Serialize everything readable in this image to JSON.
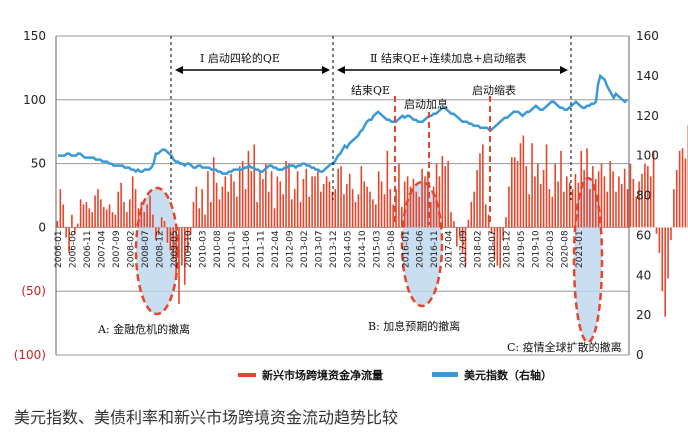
{
  "chart_data": {
    "type": "bar+line",
    "caption": "美元指数、美债利率和新兴市场跨境资金流动趋势比较",
    "left_axis": {
      "ticks": [
        "150",
        "100",
        "50",
        "0",
        "(50)",
        "(100)"
      ],
      "ylim": [
        -100,
        150
      ]
    },
    "right_axis": {
      "ticks": [
        "160",
        "140",
        "120",
        "100",
        "80",
        "60",
        "40",
        "20",
        "0"
      ],
      "ylim": [
        0,
        160
      ]
    },
    "x_ticks": [
      "2006-01",
      "2006-06",
      "2006-11",
      "2007-04",
      "2007-09",
      "2008-02",
      "2008-07",
      "2008-12",
      "2009-05",
      "2009-10",
      "2010-03",
      "2010-08",
      "2011-01",
      "2011-06",
      "2011-11",
      "2012-04",
      "2012-09",
      "2013-02",
      "2013-07",
      "2013-12",
      "2014-05",
      "2014-10",
      "2015-03",
      "2015-08",
      "2016-01",
      "2016-06",
      "2016-11",
      "2017-04",
      "2017-09",
      "2018-02",
      "2018-07",
      "2018-12",
      "2019-05",
      "2019-10",
      "2020-03",
      "2020-08",
      "2021-01"
    ],
    "start": "2006-01",
    "series": [
      {
        "name": "新兴市场跨境资金净流量",
        "axis": "left",
        "color": "#e8442a",
        "values": [
          5,
          30,
          18,
          -8,
          -20,
          10,
          -5,
          3,
          22,
          18,
          20,
          15,
          12,
          25,
          30,
          22,
          16,
          14,
          18,
          12,
          10,
          28,
          35,
          20,
          12,
          22,
          40,
          30,
          15,
          20,
          12,
          18,
          25,
          10,
          -10,
          -6,
          8,
          5,
          -12,
          -18,
          -25,
          -40,
          -60,
          -30,
          -45,
          -20,
          -6,
          20,
          32,
          15,
          30,
          10,
          44,
          20,
          55,
          35,
          22,
          32,
          40,
          28,
          42,
          36,
          24,
          48,
          52,
          30,
          60,
          44,
          65,
          20,
          45,
          38,
          50,
          28,
          44,
          15,
          40,
          36,
          26,
          52,
          50,
          22,
          30,
          44,
          20,
          38,
          46,
          24,
          40,
          40,
          44,
          28,
          34,
          40,
          36,
          28,
          30,
          46,
          48,
          26,
          34,
          42,
          30,
          20,
          26,
          48,
          36,
          32,
          28,
          22,
          18,
          44,
          36,
          26,
          60,
          30,
          18,
          30,
          50,
          16,
          36,
          40,
          32,
          38,
          28,
          24,
          46,
          40,
          44,
          20,
          32,
          50,
          40,
          56,
          48,
          52,
          12,
          5,
          -15,
          -8,
          -20,
          -30,
          6,
          20,
          28,
          45,
          58,
          65,
          18,
          10,
          -5,
          -25,
          -30,
          -32,
          -10,
          8,
          32,
          55,
          55,
          52,
          66,
          72,
          48,
          26,
          66,
          40,
          50,
          34,
          45,
          65,
          30,
          24,
          50,
          36,
          60,
          28,
          40,
          35,
          30,
          42,
          35,
          60,
          45,
          62,
          30,
          48,
          38,
          44,
          50,
          40,
          28,
          52,
          44,
          28,
          40,
          34,
          46,
          30,
          50,
          38,
          24,
          36,
          42,
          50,
          48,
          40,
          60,
          -5,
          -20,
          -50,
          -70,
          -40,
          -10,
          30,
          45,
          60,
          62,
          54,
          80,
          115,
          84,
          50,
          62,
          78,
          72,
          60,
          16,
          28
        ],
        "markers": [],
        "markers_note": ""
      },
      {
        "name": "美元指数（右轴）",
        "axis": "right",
        "color": "#3a9ad6",
        "values": [
          100,
          100,
          100,
          100,
          101,
          101,
          100,
          100,
          100,
          101,
          101,
          100,
          99,
          99,
          99,
          99,
          99,
          98,
          98,
          98,
          97,
          97,
          97,
          96,
          96,
          95,
          95,
          95,
          95,
          95,
          94,
          94,
          94,
          93,
          93,
          92,
          93,
          92,
          92,
          93,
          93,
          93,
          94,
          96,
          101,
          101,
          102,
          103,
          103,
          102,
          101,
          100,
          98,
          97,
          97,
          96,
          96,
          95,
          96,
          96,
          95,
          94,
          94,
          95,
          95,
          94,
          94,
          94,
          94,
          93,
          93,
          93,
          92,
          92,
          91,
          91,
          91,
          92,
          92,
          93,
          93,
          93,
          93,
          93,
          94,
          94,
          95,
          94,
          94,
          93,
          93,
          92,
          92,
          93,
          94,
          95,
          95,
          94,
          94,
          93,
          93,
          93,
          94,
          94,
          95,
          95,
          95,
          94,
          95,
          95,
          96,
          96,
          95,
          95,
          94,
          94,
          93,
          93,
          92,
          92,
          93,
          94,
          95,
          96,
          96,
          98,
          100,
          101,
          103,
          105,
          104,
          106,
          107,
          108,
          109,
          110,
          112,
          113,
          115,
          117,
          118,
          118,
          120,
          121,
          122,
          121,
          120,
          119,
          118,
          118,
          117,
          117,
          117,
          118,
          119,
          120,
          119,
          120,
          120,
          119,
          118,
          118,
          117,
          117,
          117,
          118,
          119,
          120,
          120,
          121,
          121,
          122,
          123,
          124,
          124,
          123,
          122,
          121,
          121,
          120,
          119,
          118,
          117,
          117,
          117,
          116,
          116,
          115,
          115,
          115,
          114,
          114,
          114,
          114,
          113,
          113,
          114,
          115,
          116,
          117,
          118,
          119,
          119,
          120,
          121,
          122,
          122,
          122,
          121,
          120,
          121,
          122,
          122,
          123,
          124,
          125,
          124,
          123,
          123,
          124,
          125,
          126,
          127,
          127,
          126,
          125,
          124,
          124,
          123,
          123,
          124,
          125,
          126,
          127,
          126,
          125,
          124,
          124,
          125,
          125,
          126,
          126,
          127,
          136,
          140,
          139,
          138,
          135,
          133,
          131,
          129,
          131,
          130,
          129,
          128,
          127,
          128
        ]
      }
    ],
    "annotations": {
      "phase1": "Ⅰ 启动四轮的QE",
      "phase2": "Ⅱ 结束QE+连续加息+启动缩表",
      "end_qe": "结束QE",
      "rate_hike": "启动加息",
      "taper": "启动缩表",
      "a": "A:  金融危机的撤离",
      "b": "B:  加息预期的撤离",
      "c": "C:  疫情全球扩散的撤离"
    },
    "legend": {
      "bar_label": "新兴市场跨境资金净流量",
      "line_label": "美元指数（右轴）"
    }
  }
}
